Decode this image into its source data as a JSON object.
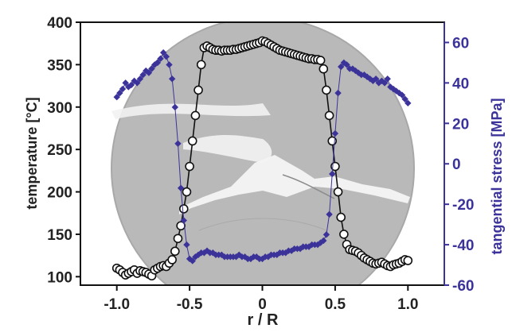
{
  "chart_data": {
    "type": "line",
    "background": "grayscale photograph of a fractured circular disk, centered on the plot",
    "xlabel": "r / R",
    "ylabel_left": "temperature [°C]",
    "ylabel_right": "tangential stress [MPa]",
    "xlim": [
      -1.25,
      1.25
    ],
    "ylim_left": [
      90,
      400
    ],
    "ylim_right": [
      -60,
      70
    ],
    "x_ticks": [
      "-1.0",
      "-0.5",
      "0",
      "0.5",
      "1.0"
    ],
    "y_left_ticks": [
      "400",
      "350",
      "300",
      "250",
      "200",
      "150",
      "100"
    ],
    "y_right_ticks": [
      "60",
      "40",
      "20",
      "0",
      "-20",
      "-40",
      "-60"
    ],
    "grid": false,
    "colors": {
      "temperature": "#111111",
      "stress": "#3b3399",
      "disk": "#b9b9b9"
    },
    "series": [
      {
        "axis": "left",
        "marker": "open-circle",
        "x": [
          -1.0,
          -0.98,
          -0.96,
          -0.94,
          -0.92,
          -0.9,
          -0.88,
          -0.86,
          -0.84,
          -0.82,
          -0.8,
          -0.78,
          -0.76,
          -0.74,
          -0.72,
          -0.7,
          -0.68,
          -0.66,
          -0.64,
          -0.62,
          -0.6,
          -0.58,
          -0.56,
          -0.54,
          -0.52,
          -0.5,
          -0.48,
          -0.46,
          -0.44,
          -0.42,
          -0.4,
          -0.38,
          -0.36,
          -0.34,
          -0.32,
          -0.3,
          -0.28,
          -0.26,
          -0.24,
          -0.22,
          -0.2,
          -0.18,
          -0.16,
          -0.14,
          -0.12,
          -0.1,
          -0.08,
          -0.06,
          -0.04,
          -0.02,
          0.0,
          0.02,
          0.04,
          0.06,
          0.08,
          0.1,
          0.12,
          0.14,
          0.16,
          0.18,
          0.2,
          0.22,
          0.24,
          0.26,
          0.28,
          0.3,
          0.32,
          0.34,
          0.36,
          0.38,
          0.4,
          0.42,
          0.44,
          0.46,
          0.48,
          0.5,
          0.52,
          0.54,
          0.56,
          0.58,
          0.6,
          0.62,
          0.64,
          0.66,
          0.68,
          0.7,
          0.72,
          0.74,
          0.76,
          0.78,
          0.8,
          0.82,
          0.84,
          0.86,
          0.88,
          0.9,
          0.92,
          0.94,
          0.96,
          0.98,
          1.0
        ],
        "y": [
          110,
          108,
          105,
          102,
          104,
          106,
          108,
          104,
          107,
          106,
          105,
          103,
          101,
          108,
          110,
          112,
          113,
          112,
          116,
          120,
          130,
          145,
          160,
          180,
          200,
          230,
          260,
          290,
          320,
          350,
          370,
          372,
          370,
          368,
          367,
          367,
          366,
          367,
          367,
          367,
          368,
          368,
          369,
          370,
          371,
          372,
          373,
          374,
          375,
          376,
          378,
          377,
          375,
          373,
          371,
          369,
          367,
          366,
          365,
          364,
          363,
          362,
          361,
          360,
          359,
          358,
          357,
          357,
          356,
          356,
          355,
          345,
          320,
          290,
          260,
          230,
          200,
          170,
          150,
          138,
          132,
          131,
          130,
          128,
          125,
          122,
          120,
          118,
          116,
          115,
          116,
          117,
          115,
          113,
          112,
          114,
          115,
          116,
          118,
          120,
          119
        ]
      },
      {
        "axis": "right",
        "marker": "diamond",
        "x": [
          -1.0,
          -0.98,
          -0.96,
          -0.94,
          -0.92,
          -0.9,
          -0.88,
          -0.86,
          -0.84,
          -0.82,
          -0.8,
          -0.78,
          -0.76,
          -0.74,
          -0.72,
          -0.7,
          -0.68,
          -0.66,
          -0.64,
          -0.62,
          -0.6,
          -0.58,
          -0.56,
          -0.54,
          -0.52,
          -0.5,
          -0.48,
          -0.46,
          -0.44,
          -0.42,
          -0.4,
          -0.38,
          -0.36,
          -0.34,
          -0.32,
          -0.3,
          -0.28,
          -0.26,
          -0.24,
          -0.22,
          -0.2,
          -0.18,
          -0.16,
          -0.14,
          -0.12,
          -0.1,
          -0.08,
          -0.06,
          -0.04,
          -0.02,
          0.0,
          0.02,
          0.04,
          0.06,
          0.08,
          0.1,
          0.12,
          0.14,
          0.16,
          0.18,
          0.2,
          0.22,
          0.24,
          0.26,
          0.28,
          0.3,
          0.32,
          0.34,
          0.36,
          0.38,
          0.4,
          0.42,
          0.44,
          0.46,
          0.48,
          0.5,
          0.52,
          0.54,
          0.56,
          0.58,
          0.6,
          0.62,
          0.64,
          0.66,
          0.68,
          0.7,
          0.72,
          0.74,
          0.76,
          0.78,
          0.8,
          0.82,
          0.84,
          0.86,
          0.88,
          0.9,
          0.92,
          0.94,
          0.96,
          0.98,
          1.0
        ],
        "y": [
          33,
          35,
          37,
          40,
          38,
          39,
          41,
          40,
          42,
          44,
          46,
          45,
          47,
          49,
          50,
          52,
          55,
          53,
          49,
          42,
          28,
          10,
          -12,
          -28,
          -40,
          -47,
          -48,
          -46,
          -45,
          -44,
          -44,
          -43,
          -44,
          -44,
          -45,
          -45,
          -45,
          -46,
          -46,
          -46,
          -46,
          -46,
          -45,
          -46,
          -46,
          -47,
          -47,
          -46,
          -46,
          -47,
          -47,
          -46,
          -46,
          -45,
          -45,
          -45,
          -44,
          -44,
          -44,
          -43,
          -43,
          -42,
          -42,
          -42,
          -41,
          -41,
          -41,
          -40,
          -40,
          -40,
          -39,
          -38,
          -35,
          -25,
          -5,
          15,
          35,
          48,
          50,
          49,
          47,
          47,
          46,
          45,
          44,
          44,
          43,
          42,
          41,
          42,
          40,
          41,
          40,
          42,
          38,
          37,
          36,
          35,
          34,
          32,
          30
        ]
      }
    ]
  }
}
